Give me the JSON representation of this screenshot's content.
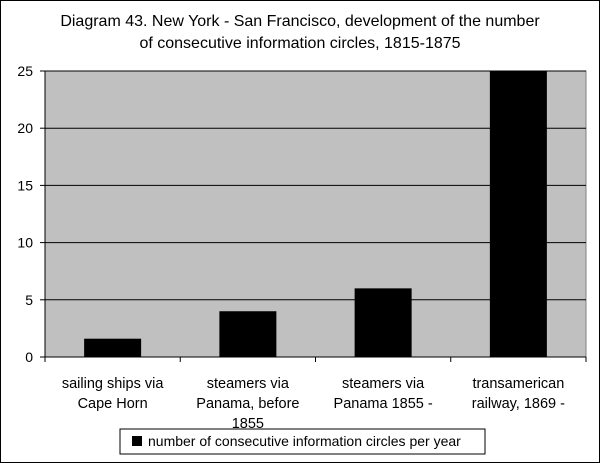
{
  "chart_data": {
    "type": "bar",
    "title_lines": [
      "Diagram 43. New York - San Francisco, development of the number",
      "of consecutive information circles, 1815-1875"
    ],
    "categories": [
      [
        "sailing ships via",
        "Cape Horn"
      ],
      [
        "steamers via",
        "Panama, before",
        "1855"
      ],
      [
        "steamers via",
        "Panama 1855 -"
      ],
      [
        "transamerican",
        "railway, 1869 -"
      ]
    ],
    "series": [
      {
        "name": "number of consecutive information circles per year",
        "values": [
          1.6,
          4,
          6,
          25
        ],
        "color": "#000000"
      }
    ],
    "ylim": [
      0,
      25
    ],
    "yticks": [
      0,
      5,
      10,
      15,
      20,
      25
    ],
    "grid": true,
    "plot_background": "#c0c0c0",
    "legend_position": "bottom"
  }
}
